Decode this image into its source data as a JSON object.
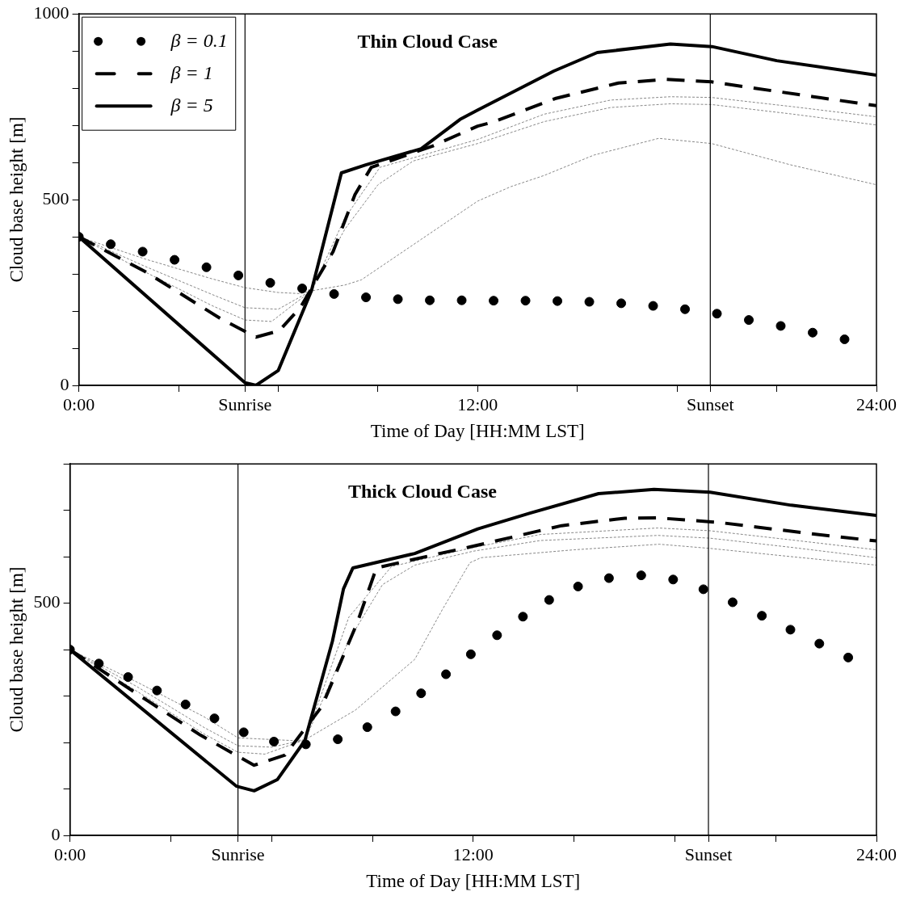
{
  "chart_data": [
    {
      "type": "line",
      "title": "Thin Cloud Case",
      "xlabel": "Time of Day [HH:MM LST]",
      "ylabel": "Cloud base height [m]",
      "xlim": [
        0,
        24
      ],
      "xticks": [
        {
          "value": 0,
          "label": "0:00"
        },
        {
          "value": 3,
          "label": null
        },
        {
          "value": 5,
          "label": "Sunrise"
        },
        {
          "value": 6,
          "label": null
        },
        {
          "value": 9,
          "label": null
        },
        {
          "value": 12,
          "label": "12:00"
        },
        {
          "value": 15,
          "label": null
        },
        {
          "value": 18,
          "label": null
        },
        {
          "value": 19,
          "label": "Sunset"
        },
        {
          "value": 21,
          "label": null
        },
        {
          "value": 24,
          "label": "24:00"
        }
      ],
      "ylim": [
        0,
        1000
      ],
      "yticks": [
        0,
        {
          "value": 100,
          "label": null
        },
        {
          "value": 200,
          "label": null
        },
        {
          "value": 300,
          "label": null
        },
        {
          "value": 400,
          "label": null
        },
        500,
        {
          "value": 600,
          "label": null
        },
        {
          "value": 700,
          "label": null
        },
        {
          "value": 800,
          "label": null
        },
        {
          "value": 900,
          "label": null
        },
        1000
      ],
      "grid": false,
      "legend": "top left",
      "ref_lines": [
        {
          "axis": "x",
          "value": 5,
          "color": "#000000"
        },
        {
          "axis": "x",
          "value": 19,
          "color": "#000000"
        }
      ],
      "series": [
        {
          "color": "#888888",
          "line_style": "dashed",
          "x": [
            0,
            2,
            4,
            5,
            6,
            6.66,
            7.03,
            8,
            8.5,
            10.3,
            12,
            13,
            14,
            15.5,
            17.45,
            19.04,
            21.4,
            24
          ],
          "values": [
            400,
            340,
            287,
            263,
            250,
            247,
            255,
            270,
            284,
            393,
            496,
            535,
            565,
            620,
            665,
            651,
            594,
            540
          ]
        },
        {
          "color": "#888888",
          "line_style": "dashed",
          "x": [
            0,
            2,
            4,
            5,
            6,
            7,
            8,
            9,
            10.06,
            12,
            14,
            16,
            17.8,
            19.04,
            21.5,
            24
          ],
          "values": [
            400,
            320,
            245,
            209,
            205,
            255,
            420,
            540,
            604,
            651,
            710,
            748,
            758,
            756,
            730,
            701
          ]
        },
        {
          "color": "#888888",
          "line_style": "dashed",
          "x": [
            0,
            2,
            4,
            5,
            5.8,
            7,
            8,
            9.06,
            12,
            14,
            16,
            17.8,
            19.04,
            21.5,
            24
          ],
          "values": [
            400,
            305,
            215,
            176,
            172,
            255,
            450,
            587,
            662,
            730,
            768,
            777,
            775,
            750,
            723
          ]
        },
        {
          "name": "β = 0.1",
          "color": "#000000",
          "type": "scatter",
          "marker": "circle",
          "x": [
            0,
            0.96,
            1.92,
            2.88,
            3.84,
            4.8,
            5.76,
            6.72,
            7.68,
            8.64,
            9.6,
            10.56,
            11.52,
            12.48,
            13.44,
            14.4,
            15.36,
            16.32,
            17.28,
            18.24,
            19.2,
            20.16,
            21.12,
            22.08,
            23.04
          ],
          "values": [
            400,
            380,
            360,
            338,
            318,
            296,
            276,
            261,
            246,
            237,
            232,
            229,
            229,
            228,
            228,
            227,
            225,
            221,
            214,
            205,
            193,
            176,
            160,
            142,
            124
          ]
        },
        {
          "name": "β = 1",
          "color": "#000000",
          "line_style": "dashed",
          "x": [
            0,
            2,
            4.26,
            5.33,
            6.03,
            6.66,
            7.65,
            8.31,
            8.8,
            10.64,
            12,
            12.47,
            14.33,
            16.24,
            17.69,
            19.04,
            22.1,
            24
          ],
          "values": [
            400,
            306,
            180,
            130,
            147,
            209,
            360,
            514,
            587,
            644,
            698,
            709,
            772,
            814,
            824,
            817,
            777,
            753
          ]
        },
        {
          "name": "β = 5",
          "color": "#000000",
          "line_style": "solid",
          "x": [
            0,
            5,
            5.33,
            6,
            7,
            7.9,
            8.65,
            10.3,
            11.47,
            12,
            14.29,
            15.6,
            17.8,
            19.05,
            21,
            24
          ],
          "values": [
            400,
            7,
            0,
            40,
            255,
            572,
            594,
            637,
            716,
            741,
            846,
            896,
            919,
            912,
            874,
            835
          ]
        }
      ]
    },
    {
      "type": "line",
      "title": "Thick Cloud Case",
      "xlabel": "Time of Day [HH:MM LST]",
      "ylabel": "Cloud base height [m]",
      "xlim": [
        0,
        24
      ],
      "xticks": [
        {
          "value": 0,
          "label": "0:00"
        },
        {
          "value": 3,
          "label": null
        },
        {
          "value": 5,
          "label": "Sunrise"
        },
        {
          "value": 6,
          "label": null
        },
        {
          "value": 9,
          "label": null
        },
        {
          "value": 12,
          "label": "12:00"
        },
        {
          "value": 15,
          "label": null
        },
        {
          "value": 18,
          "label": null
        },
        {
          "value": 19,
          "label": "Sunset"
        },
        {
          "value": 21,
          "label": null
        },
        {
          "value": 24,
          "label": "24:00"
        }
      ],
      "ylim": [
        0,
        800
      ],
      "yticks": [
        0,
        {
          "value": 100,
          "label": null
        },
        {
          "value": 200,
          "label": null
        },
        {
          "value": 300,
          "label": null
        },
        {
          "value": 400,
          "label": null
        },
        500,
        {
          "value": 600,
          "label": null
        },
        {
          "value": 700,
          "label": null
        },
        {
          "value": 800,
          "label": null
        }
      ],
      "grid": false,
      "ref_lines": [
        {
          "axis": "x",
          "value": 5,
          "color": "#000000"
        },
        {
          "axis": "x",
          "value": 19,
          "color": "#000000"
        }
      ],
      "series": [
        {
          "color": "#888888",
          "line_style": "dashed",
          "x": [
            0,
            2,
            4,
            5,
            6.66,
            7,
            8.5,
            10.26,
            11.08,
            11.9,
            12.23,
            15,
            17.54,
            19.05,
            21.5,
            24
          ],
          "values": [
            400,
            330,
            255,
            210,
            204,
            206,
            270,
            379,
            486,
            587,
            598,
            615,
            627,
            618,
            600,
            582
          ]
        },
        {
          "color": "#888888",
          "line_style": "dashed",
          "x": [
            0,
            2,
            4,
            5,
            6,
            7,
            8.3,
            9.3,
            10.26,
            12,
            14,
            17.5,
            19.05,
            21.5,
            24
          ],
          "values": [
            400,
            320,
            232,
            193,
            190,
            206,
            420,
            540,
            582,
            612,
            635,
            646,
            640,
            620,
            598
          ]
        },
        {
          "color": "#888888",
          "line_style": "dashed",
          "x": [
            0,
            2,
            4,
            5,
            5.8,
            7,
            8.3,
            9.57,
            12,
            14,
            17.5,
            19.05,
            21.5,
            24
          ],
          "values": [
            400,
            310,
            218,
            179,
            175,
            206,
            470,
            579,
            620,
            648,
            662,
            656,
            636,
            615
          ]
        },
        {
          "color": "#000000",
          "type": "scatter",
          "marker": "circle",
          "x": [
            0,
            0.86,
            1.73,
            2.59,
            3.44,
            4.3,
            5.17,
            6.07,
            7.02,
            7.97,
            8.85,
            9.69,
            10.45,
            11.19,
            11.93,
            12.71,
            13.48,
            14.26,
            15.12,
            16.04,
            17.0,
            17.95,
            18.85,
            19.72,
            20.59,
            21.44,
            22.3,
            23.16
          ],
          "values": [
            400,
            370,
            341,
            312,
            282,
            252,
            222,
            202,
            196,
            207,
            233,
            267,
            306,
            347,
            390,
            431,
            471,
            507,
            536,
            554,
            560,
            551,
            530,
            502,
            473,
            443,
            413,
            383
          ]
        },
        {
          "color": "#000000",
          "line_style": "dashed",
          "x": [
            0,
            2.33,
            3.88,
            5.48,
            6.4,
            7.5,
            8.55,
            9.12,
            11,
            11.9,
            14.63,
            16.51,
            17.45,
            19.3,
            22.13,
            24
          ],
          "values": [
            400,
            289,
            216,
            151,
            173,
            278,
            458,
            576,
            607,
            621,
            667,
            683,
            684,
            674,
            649,
            634
          ]
        },
        {
          "color": "#000000",
          "line_style": "solid",
          "x": [
            0,
            4.95,
            5.48,
            6.17,
            6.99,
            7.81,
            8.14,
            8.42,
            10.26,
            11.65,
            12.14,
            13.69,
            15.73,
            17.38,
            19.05,
            21.46,
            24
          ],
          "values": [
            400,
            106,
            96,
            120,
            204,
            418,
            531,
            576,
            607,
            646,
            660,
            694,
            736,
            745,
            739,
            711,
            689
          ]
        }
      ]
    }
  ]
}
